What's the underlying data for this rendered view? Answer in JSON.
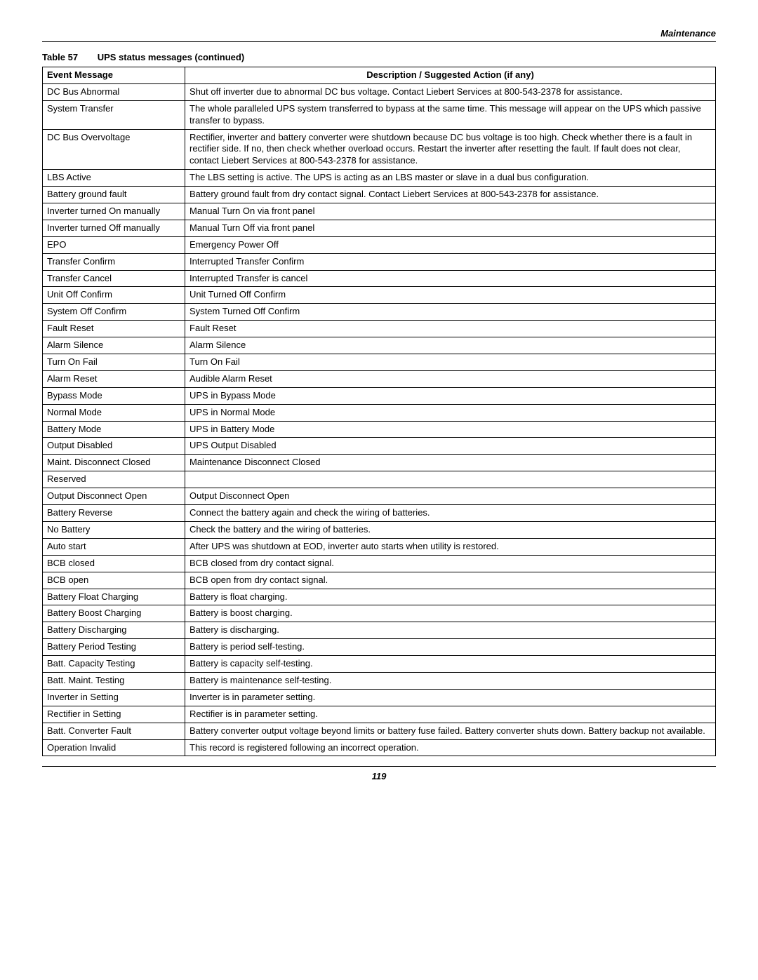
{
  "header": {
    "section": "Maintenance"
  },
  "table": {
    "number": "Table 57",
    "title": "UPS status messages (continued)",
    "columns": {
      "event": "Event Message",
      "desc": "Description / Suggested Action (if any)"
    },
    "rows": [
      {
        "event": "DC Bus Abnormal",
        "desc": "Shut off inverter due to abnormal DC bus voltage.\nContact Liebert Services at 800-543-2378 for assistance."
      },
      {
        "event": "System Transfer",
        "desc": "The whole paralleled UPS system transferred to bypass at the same time. This message will appear on the UPS which passive transfer to bypass."
      },
      {
        "event": "DC Bus Overvoltage",
        "desc": "Rectifier, inverter and battery converter were shutdown because DC bus voltage is too high. Check whether there is a fault in rectifier side. If no, then check whether overload occurs. Restart the inverter after resetting the fault. If fault does not clear, contact Liebert Services at 800-543-2378 for assistance."
      },
      {
        "event": "LBS Active",
        "desc": "The LBS setting is active. The UPS is acting as an LBS master or slave in a dual bus configuration."
      },
      {
        "event": "Battery ground fault",
        "desc": "Battery ground fault from dry contact signal. Contact Liebert Services at 800-543-2378 for assistance."
      },
      {
        "event": "Inverter turned On manually",
        "desc": "Manual Turn On via front panel"
      },
      {
        "event": "Inverter turned Off manually",
        "desc": "Manual Turn Off via front panel"
      },
      {
        "event": "EPO",
        "desc": "Emergency Power Off"
      },
      {
        "event": "Transfer Confirm",
        "desc": "Interrupted Transfer Confirm"
      },
      {
        "event": "Transfer Cancel",
        "desc": "Interrupted Transfer is cancel"
      },
      {
        "event": "Unit Off Confirm",
        "desc": "Unit Turned Off Confirm"
      },
      {
        "event": "System Off Confirm",
        "desc": "System Turned Off Confirm"
      },
      {
        "event": "Fault Reset",
        "desc": "Fault Reset"
      },
      {
        "event": "Alarm Silence",
        "desc": "Alarm Silence"
      },
      {
        "event": "Turn On Fail",
        "desc": "Turn On Fail"
      },
      {
        "event": "Alarm Reset",
        "desc": "Audible Alarm Reset"
      },
      {
        "event": "Bypass Mode",
        "desc": "UPS in Bypass Mode"
      },
      {
        "event": "Normal Mode",
        "desc": "UPS in Normal Mode"
      },
      {
        "event": "Battery Mode",
        "desc": "UPS in Battery Mode"
      },
      {
        "event": "Output Disabled",
        "desc": "UPS Output Disabled"
      },
      {
        "event": "Maint. Disconnect Closed",
        "desc": "Maintenance Disconnect Closed"
      },
      {
        "event": "Reserved",
        "desc": ""
      },
      {
        "event": "Output Disconnect Open",
        "desc": "Output Disconnect Open"
      },
      {
        "event": "Battery Reverse",
        "desc": "Connect the battery again and check the wiring of batteries."
      },
      {
        "event": "No Battery",
        "desc": "Check the battery and the wiring of batteries."
      },
      {
        "event": "Auto start",
        "desc": "After UPS was shutdown at EOD, inverter auto starts when utility is restored."
      },
      {
        "event": "BCB closed",
        "desc": "BCB closed from dry contact signal."
      },
      {
        "event": "BCB open",
        "desc": "BCB open from dry contact signal."
      },
      {
        "event": "Battery Float Charging",
        "desc": "Battery is float charging."
      },
      {
        "event": "Battery Boost Charging",
        "desc": "Battery is boost charging."
      },
      {
        "event": "Battery Discharging",
        "desc": "Battery is discharging."
      },
      {
        "event": "Battery Period Testing",
        "desc": "Battery is period self-testing."
      },
      {
        "event": "Batt. Capacity Testing",
        "desc": "Battery is capacity self-testing."
      },
      {
        "event": "Batt. Maint. Testing",
        "desc": "Battery is maintenance self-testing."
      },
      {
        "event": "Inverter in Setting",
        "desc": "Inverter is in parameter setting."
      },
      {
        "event": "Rectifier in Setting",
        "desc": "Rectifier is in parameter setting."
      },
      {
        "event": "Batt. Converter Fault",
        "desc": "Battery converter output voltage beyond limits or battery fuse failed. Battery converter shuts down. Battery backup not available."
      },
      {
        "event": "Operation Invalid",
        "desc": "This record is registered following an incorrect operation."
      }
    ]
  },
  "footer": {
    "page": "119"
  }
}
